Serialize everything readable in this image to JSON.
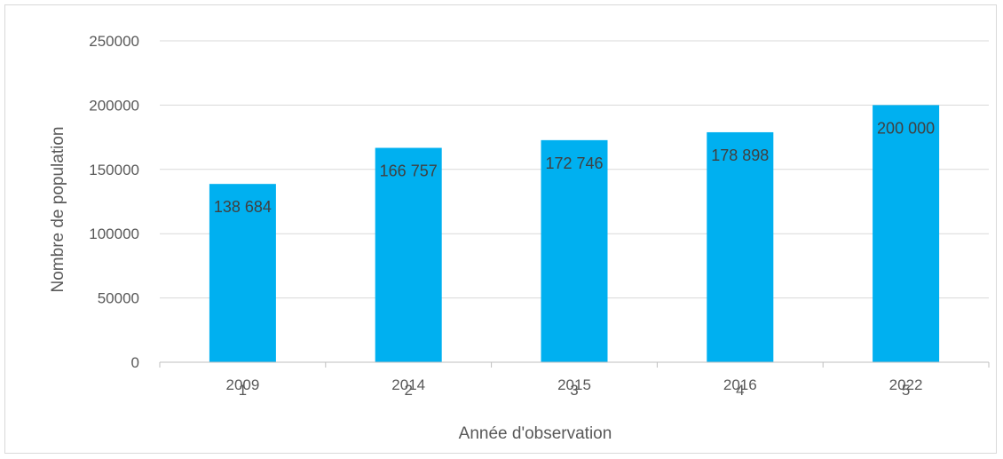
{
  "chart_data": {
    "type": "bar",
    "categories": [
      "1",
      "2",
      "3",
      "4",
      "5"
    ],
    "category_labels": [
      "2009",
      "2014",
      "2015",
      "2016",
      "2022"
    ],
    "values": [
      138684,
      166757,
      172746,
      178898,
      200000
    ],
    "data_labels": [
      "138 684",
      "166 757",
      "172 746",
      "178 898",
      "200 000"
    ],
    "xlabel": "Année d'observation",
    "ylabel": "Nombre de population",
    "ylim": [
      0,
      250000
    ],
    "yticks": [
      "0",
      "50000",
      "100000",
      "150000",
      "200000",
      "250000"
    ],
    "grid": true,
    "bar_color": "#00b0f0",
    "gridline_color": "#d9d9d9"
  }
}
